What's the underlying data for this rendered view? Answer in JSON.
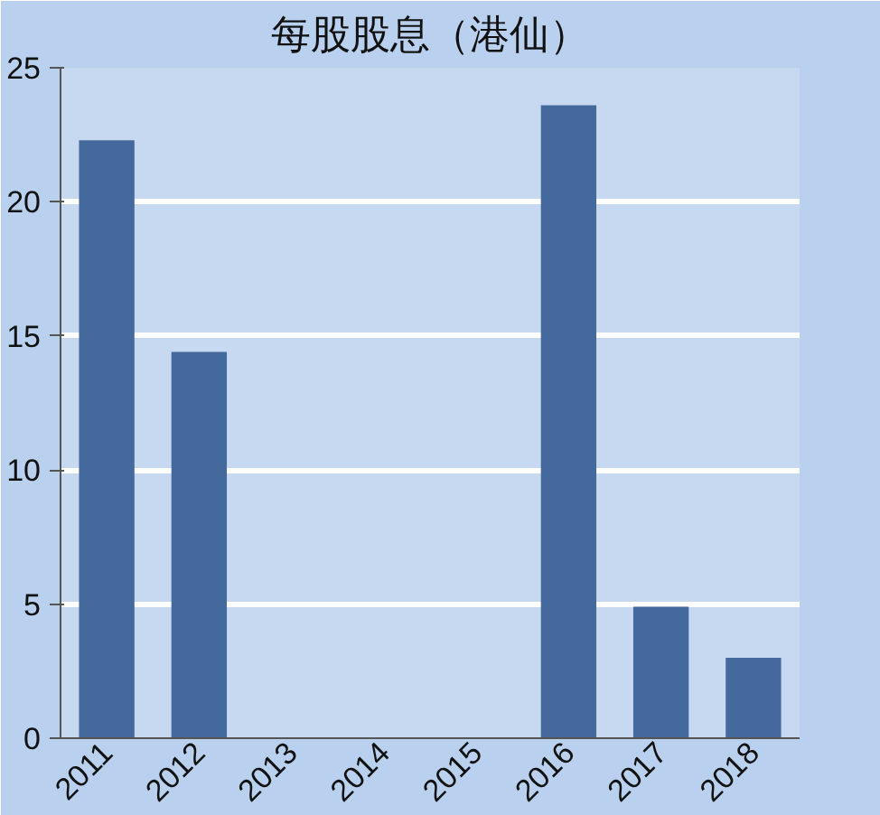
{
  "chart_data": {
    "type": "bar",
    "title": "每股股息（港仙）",
    "categories": [
      "2011",
      "2012",
      "2013",
      "2014",
      "2015",
      "2016",
      "2017",
      "2018"
    ],
    "values": [
      22.3,
      14.4,
      0,
      0,
      0,
      23.6,
      4.9,
      3.0
    ],
    "color": "#44699c",
    "ylim": [
      0,
      25
    ],
    "yticks": [
      0,
      5,
      10,
      15,
      20,
      25
    ],
    "grid": "y"
  }
}
